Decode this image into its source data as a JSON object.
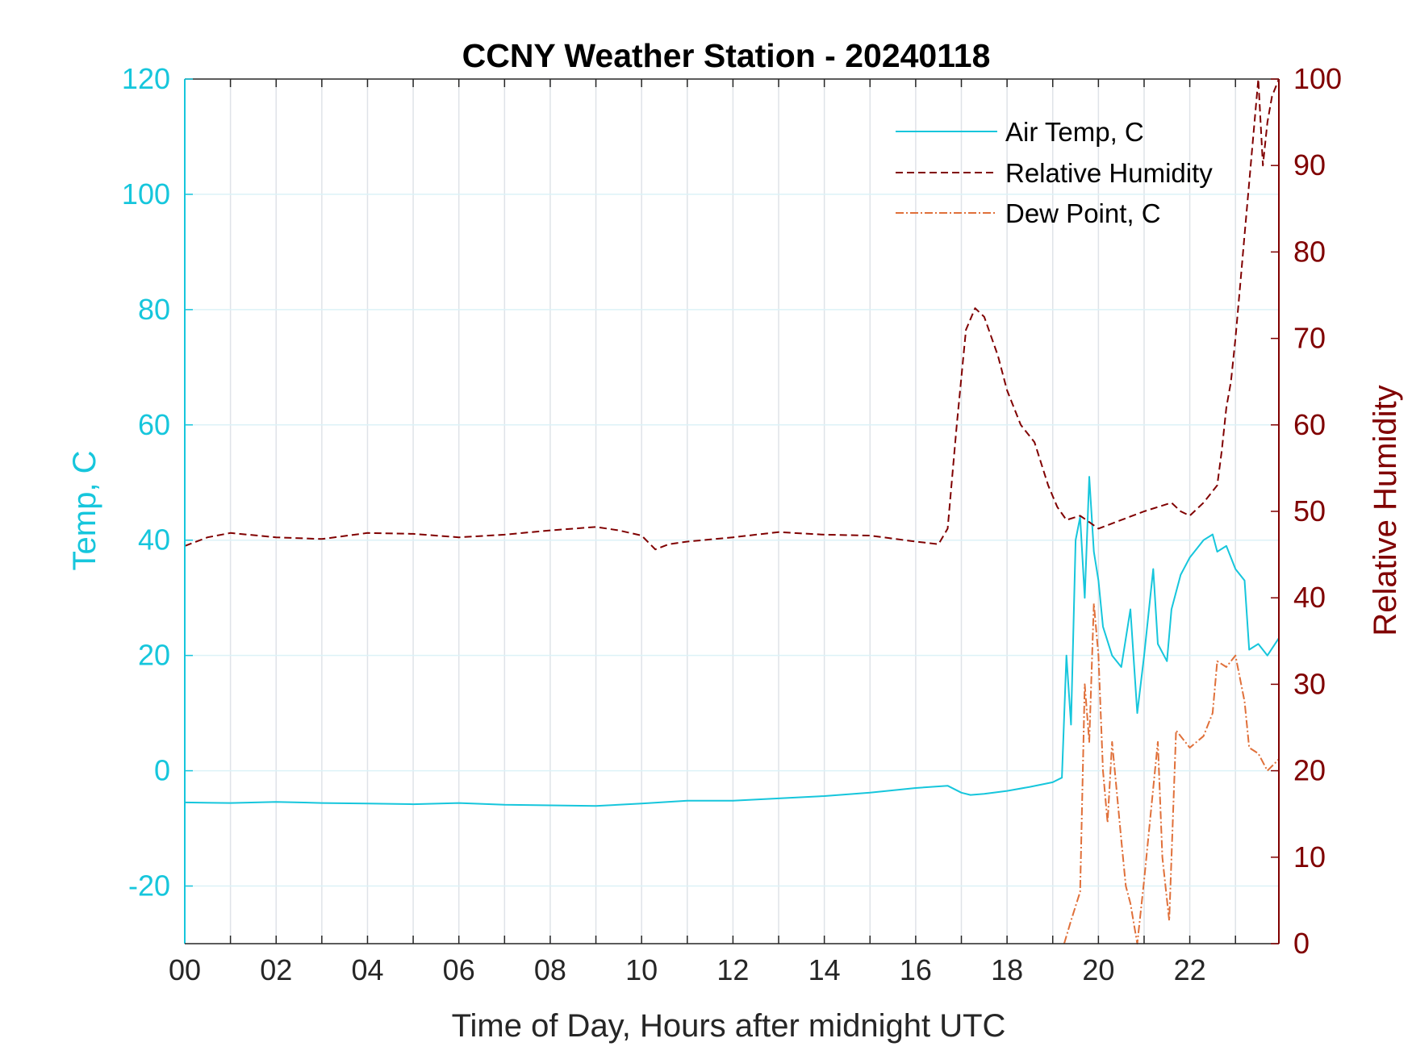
{
  "colors": {
    "temp": "#16c6dc",
    "rh": "#800000",
    "dew": "#e0703a",
    "grid": "#dfe3e8",
    "axis_dark": "#262626"
  },
  "chart_data": {
    "type": "line",
    "title": "CCNY Weather Station - 20240118",
    "xlabel": "Time of Day, Hours after midnight UTC",
    "ylabel_left": "Temp, C",
    "ylabel_right": "Relative Humidity",
    "xlim": [
      0,
      23.95
    ],
    "ylim_left": [
      -30,
      120
    ],
    "ylim_right": [
      0,
      100
    ],
    "x_ticks": [
      0,
      2,
      4,
      6,
      8,
      10,
      12,
      14,
      16,
      18,
      20,
      22
    ],
    "x_tick_labels": [
      "00",
      "02",
      "04",
      "06",
      "08",
      "10",
      "12",
      "14",
      "16",
      "18",
      "20",
      "22"
    ],
    "y_left_ticks": [
      -20,
      0,
      20,
      40,
      60,
      80,
      100,
      120
    ],
    "y_left_tick_labels": [
      "-20",
      "0",
      "20",
      "40",
      "60",
      "80",
      "100",
      "120"
    ],
    "y_right_ticks": [
      0,
      10,
      20,
      30,
      40,
      50,
      60,
      70,
      80,
      90,
      100
    ],
    "y_right_tick_labels": [
      "0",
      "10",
      "20",
      "30",
      "40",
      "50",
      "60",
      "70",
      "80",
      "90",
      "100"
    ],
    "grid": true,
    "legend_position": "top-right",
    "series": [
      {
        "name": "Air Temp, C",
        "axis": "left",
        "style": "solid",
        "x": [
          0,
          1,
          2,
          3,
          4,
          5,
          6,
          7,
          8,
          9,
          10,
          11,
          12,
          13,
          14,
          15,
          16,
          16.7,
          17,
          17.2,
          17.5,
          18,
          18.5,
          19,
          19.2,
          19.3,
          19.4,
          19.5,
          19.6,
          19.7,
          19.8,
          19.9,
          20,
          20.1,
          20.3,
          20.5,
          20.7,
          20.85,
          21,
          21.2,
          21.3,
          21.5,
          21.6,
          21.8,
          22,
          22.3,
          22.5,
          22.6,
          22.8,
          23,
          23.2,
          23.3,
          23.5,
          23.7,
          23.95
        ],
        "values": [
          -5.5,
          -5.6,
          -5.4,
          -5.6,
          -5.7,
          -5.8,
          -5.6,
          -5.9,
          -6,
          -6.1,
          -5.7,
          -5.2,
          -5.2,
          -4.8,
          -4.4,
          -3.8,
          -3,
          -2.6,
          -3.8,
          -4.2,
          -4,
          -3.5,
          -2.8,
          -2,
          -1.2,
          20,
          8,
          40,
          44,
          30,
          51,
          38,
          33,
          25,
          20,
          18,
          28,
          10,
          20,
          35,
          22,
          19,
          28,
          34,
          37,
          40,
          41,
          38,
          39,
          35,
          33,
          21,
          22,
          20,
          23
        ]
      },
      {
        "name": "Relative Humidity",
        "axis": "right",
        "style": "dashed",
        "x": [
          0,
          0.5,
          1,
          2,
          3,
          4,
          5,
          6,
          7,
          8,
          9,
          9.5,
          10,
          10.3,
          10.6,
          11,
          12,
          13,
          14,
          15,
          16,
          16.5,
          16.7,
          16.9,
          17.1,
          17.3,
          17.5,
          17.8,
          18,
          18.3,
          18.6,
          18.9,
          19.1,
          19.3,
          19.6,
          20,
          20.5,
          21,
          21.3,
          21.6,
          21.8,
          22,
          22.3,
          22.6,
          22.7,
          22.8,
          22.9,
          23,
          23.1,
          23.2,
          23.3,
          23.5,
          23.6,
          23.7,
          23.8,
          23.95
        ],
        "values": [
          46,
          47,
          47.5,
          47,
          46.8,
          47.5,
          47.4,
          47,
          47.3,
          47.8,
          48.2,
          47.8,
          47.2,
          45.6,
          46.2,
          46.5,
          47,
          47.6,
          47.3,
          47.2,
          46.5,
          46.2,
          48,
          60,
          71,
          73.5,
          72.5,
          68,
          64,
          60,
          58,
          53,
          50.5,
          49,
          49.5,
          48,
          49,
          50,
          50.5,
          51,
          50,
          49.5,
          51,
          53,
          57,
          62,
          65,
          70,
          76,
          82,
          88,
          100,
          90,
          95,
          98,
          100
        ]
      },
      {
        "name": "Dew Point, C",
        "axis": "left",
        "style": "dashdot",
        "x": [
          19.25,
          19.4,
          19.6,
          19.7,
          19.8,
          19.9,
          20,
          20.1,
          20.2,
          20.3,
          20.5,
          20.6,
          20.7,
          20.85,
          21,
          21.2,
          21.3,
          21.4,
          21.55,
          21.7,
          22,
          22.3,
          22.5,
          22.6,
          22.8,
          23,
          23.2,
          23.3,
          23.5,
          23.7,
          23.95
        ],
        "values": [
          -30,
          -26,
          -21,
          15,
          5,
          29,
          20,
          0,
          -9,
          5,
          -12,
          -20,
          -23,
          -30,
          -19,
          -3,
          5,
          -15,
          -26,
          7,
          4,
          6,
          10,
          19,
          18,
          20,
          12,
          4,
          3,
          0,
          2
        ]
      }
    ]
  }
}
